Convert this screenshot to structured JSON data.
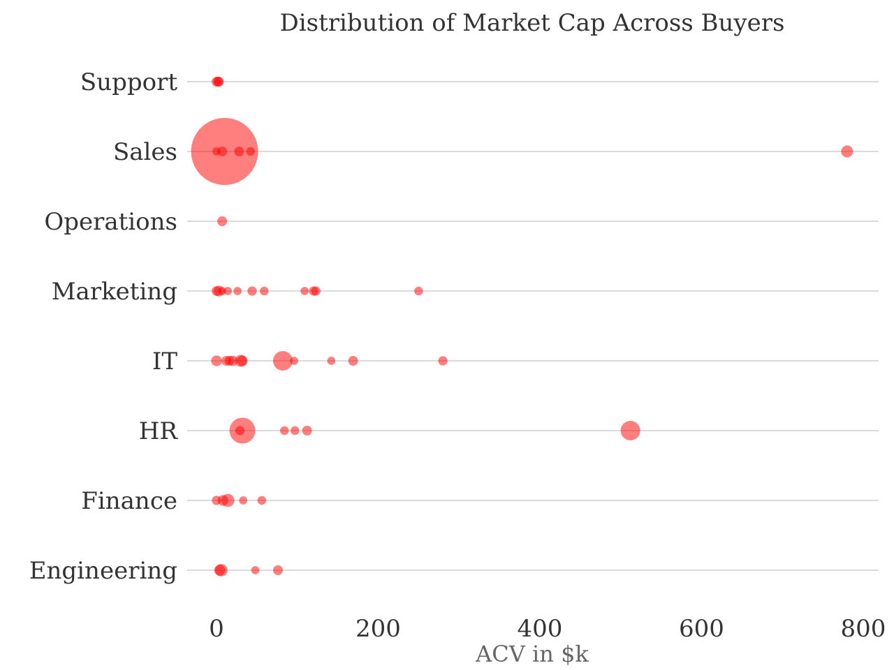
{
  "chart_data": {
    "type": "scatter",
    "title": "Distribution of Market Cap Across Buyers",
    "xlabel": "ACV in $k",
    "ylabel": "",
    "xlim": [
      0,
      800
    ],
    "x_ticks": [
      0,
      200,
      400,
      600,
      800
    ],
    "categories": [
      "Support",
      "Sales",
      "Operations",
      "Marketing",
      "IT",
      "HR",
      "Finance",
      "Engineering"
    ],
    "grid": true,
    "marker_color": "#ff0000",
    "marker_opacity": 0.5,
    "points": [
      {
        "category": "Support",
        "x": 0,
        "size": 1
      },
      {
        "category": "Support",
        "x": 2,
        "size": 1
      },
      {
        "category": "Support",
        "x": 3,
        "size": 1
      },
      {
        "category": "Sales",
        "x": 10,
        "size": 47
      },
      {
        "category": "Sales",
        "x": 0,
        "size": 0.7
      },
      {
        "category": "Sales",
        "x": 7,
        "size": 1
      },
      {
        "category": "Sales",
        "x": 28,
        "size": 1
      },
      {
        "category": "Sales",
        "x": 42,
        "size": 0.8
      },
      {
        "category": "Sales",
        "x": 780,
        "size": 1.5
      },
      {
        "category": "Operations",
        "x": 7,
        "size": 1
      },
      {
        "category": "Marketing",
        "x": 0,
        "size": 1
      },
      {
        "category": "Marketing",
        "x": 3,
        "size": 1.2
      },
      {
        "category": "Marketing",
        "x": 7,
        "size": 0.7
      },
      {
        "category": "Marketing",
        "x": 14,
        "size": 0.7
      },
      {
        "category": "Marketing",
        "x": 26,
        "size": 0.7
      },
      {
        "category": "Marketing",
        "x": 44,
        "size": 0.9
      },
      {
        "category": "Marketing",
        "x": 59,
        "size": 0.8
      },
      {
        "category": "Marketing",
        "x": 109,
        "size": 0.7
      },
      {
        "category": "Marketing",
        "x": 120,
        "size": 0.9
      },
      {
        "category": "Marketing",
        "x": 123,
        "size": 0.9
      },
      {
        "category": "Marketing",
        "x": 250,
        "size": 0.8
      },
      {
        "category": "IT",
        "x": 0,
        "size": 1.2
      },
      {
        "category": "IT",
        "x": 12,
        "size": 1
      },
      {
        "category": "IT",
        "x": 16,
        "size": 1
      },
      {
        "category": "IT",
        "x": 20,
        "size": 1.1
      },
      {
        "category": "IT",
        "x": 30,
        "size": 1.5
      },
      {
        "category": "IT",
        "x": 32,
        "size": 1.2
      },
      {
        "category": "IT",
        "x": 82,
        "size": 4
      },
      {
        "category": "IT",
        "x": 96,
        "size": 0.7
      },
      {
        "category": "IT",
        "x": 142,
        "size": 0.7
      },
      {
        "category": "IT",
        "x": 169,
        "size": 1
      },
      {
        "category": "IT",
        "x": 280,
        "size": 0.9
      },
      {
        "category": "HR",
        "x": 32,
        "size": 7
      },
      {
        "category": "HR",
        "x": 29,
        "size": 0.9
      },
      {
        "category": "HR",
        "x": 84,
        "size": 0.8
      },
      {
        "category": "HR",
        "x": 97,
        "size": 0.8
      },
      {
        "category": "HR",
        "x": 112,
        "size": 1
      },
      {
        "category": "HR",
        "x": 512,
        "size": 4
      },
      {
        "category": "Finance",
        "x": 0,
        "size": 0.9
      },
      {
        "category": "Finance",
        "x": 8,
        "size": 1.2
      },
      {
        "category": "Finance",
        "x": 14,
        "size": 1.8
      },
      {
        "category": "Finance",
        "x": 33,
        "size": 0.7
      },
      {
        "category": "Finance",
        "x": 56,
        "size": 0.8
      },
      {
        "category": "Engineering",
        "x": 4,
        "size": 1.3
      },
      {
        "category": "Engineering",
        "x": 6,
        "size": 1.6
      },
      {
        "category": "Engineering",
        "x": 48,
        "size": 0.7
      },
      {
        "category": "Engineering",
        "x": 76,
        "size": 1
      }
    ]
  }
}
